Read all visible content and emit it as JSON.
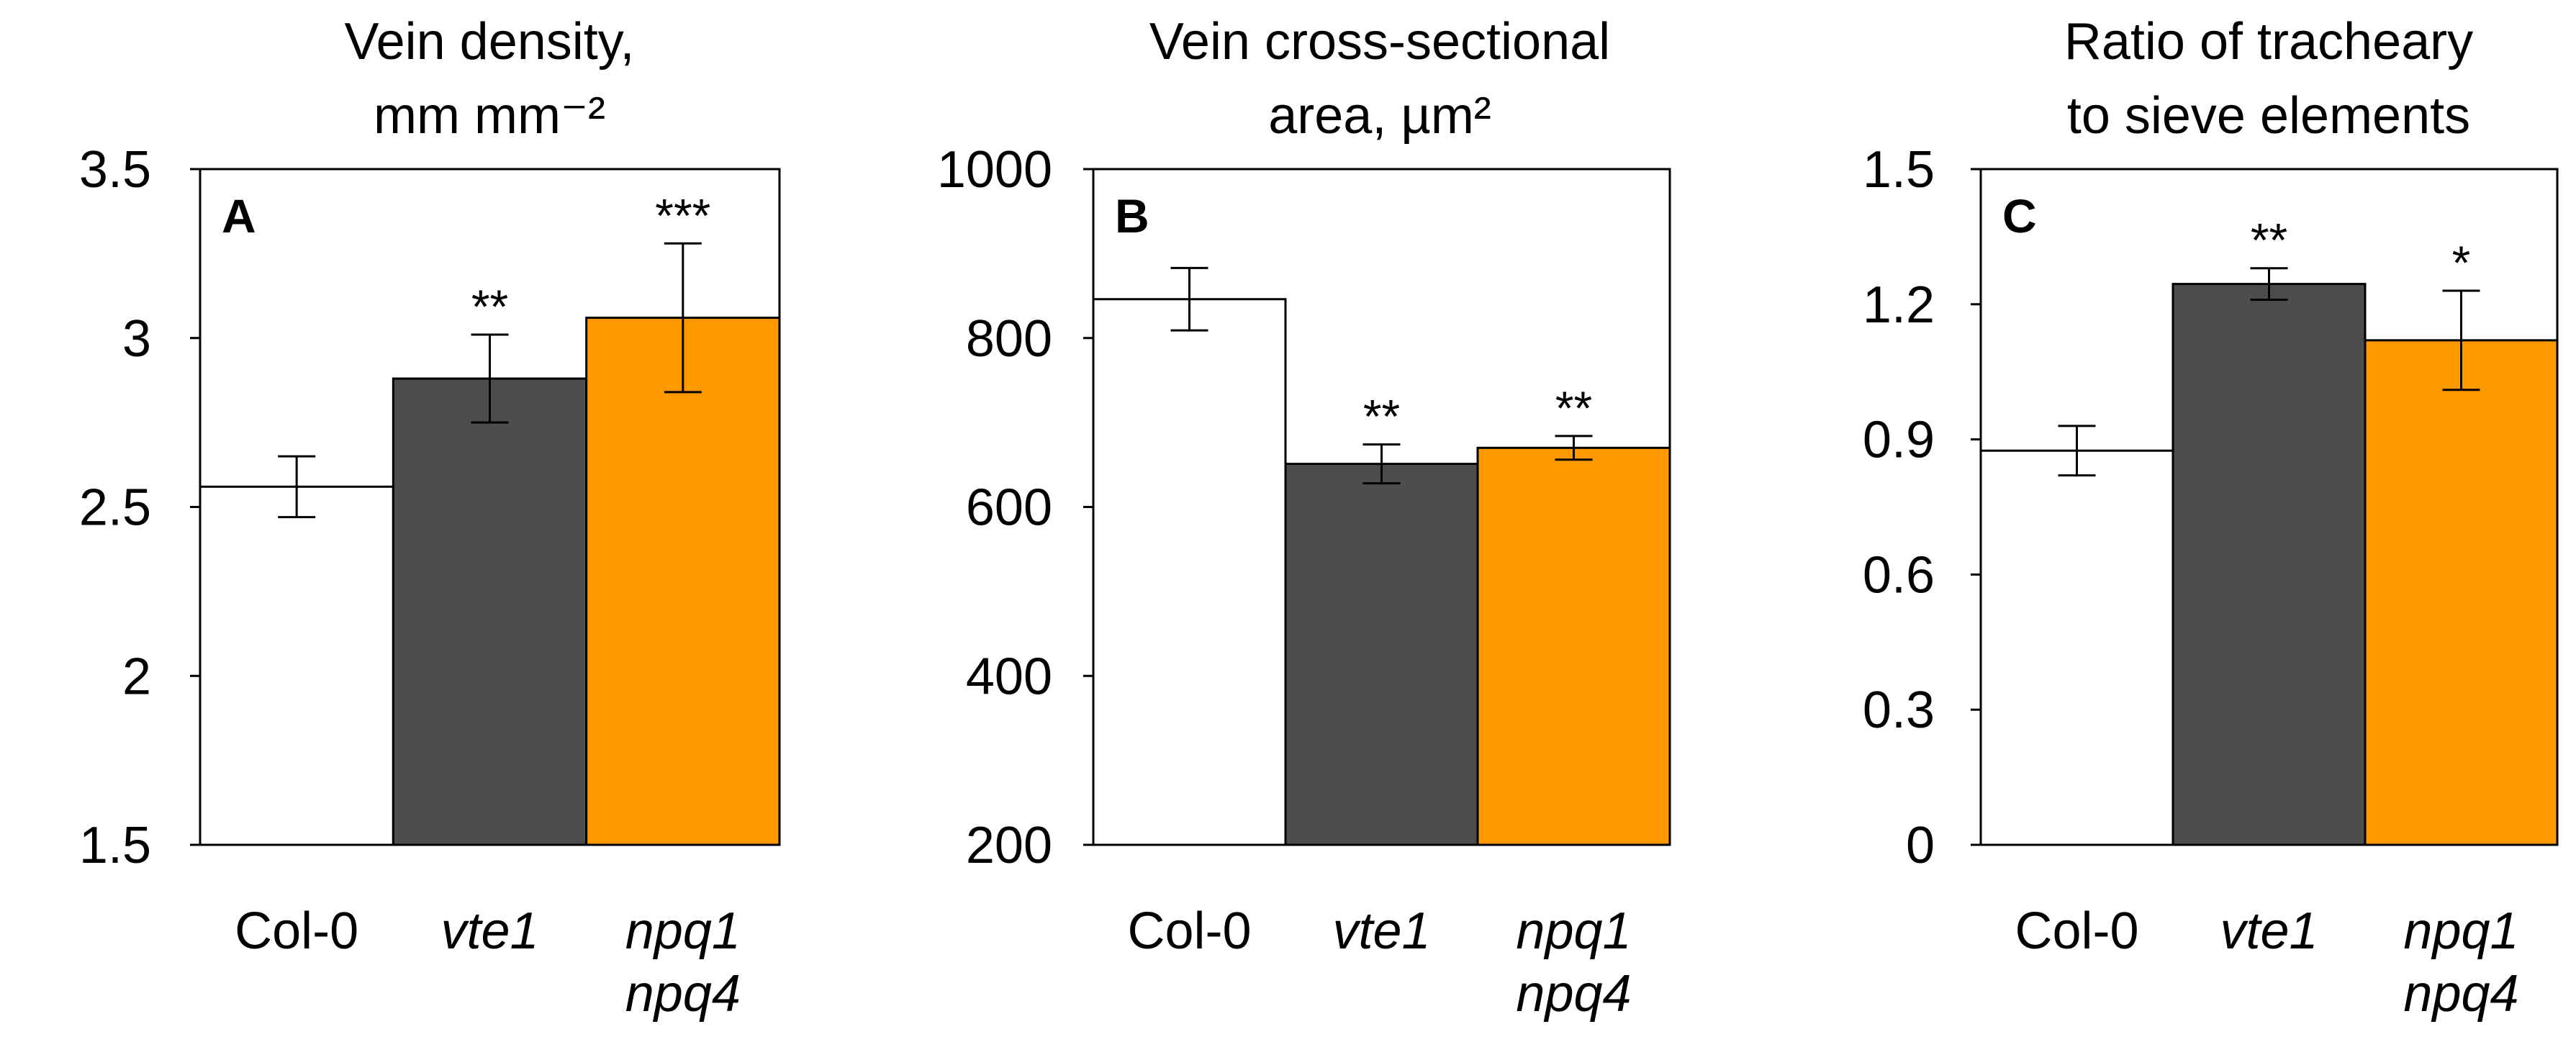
{
  "chart_data": [
    {
      "type": "bar",
      "panel": "A",
      "title": [
        "Vein density,",
        "mm mm⁻²"
      ],
      "categories": [
        {
          "lines": [
            "Col-0"
          ],
          "italic": false
        },
        {
          "lines": [
            "vte1"
          ],
          "italic": true
        },
        {
          "lines": [
            "npq1",
            "npq4"
          ],
          "italic": true
        }
      ],
      "values": [
        2.56,
        2.88,
        3.06
      ],
      "errors": [
        0.09,
        0.13,
        0.22
      ],
      "significance": [
        "",
        "**",
        "***"
      ],
      "colors": [
        "#ffffff",
        "#4d4d4d",
        "#ff9900"
      ],
      "ylim": [
        1.5,
        3.5
      ],
      "yticks": [
        "1.5",
        "2",
        "2.5",
        "3",
        "3.5"
      ],
      "ytick_values": [
        1.5,
        2,
        2.5,
        3,
        3.5
      ]
    },
    {
      "type": "bar",
      "panel": "B",
      "title": [
        "Vein cross-sectional",
        "area, µm²"
      ],
      "categories": [
        {
          "lines": [
            "Col-0"
          ],
          "italic": false
        },
        {
          "lines": [
            "vte1"
          ],
          "italic": true
        },
        {
          "lines": [
            "npq1",
            "npq4"
          ],
          "italic": true
        }
      ],
      "values": [
        846,
        651,
        670
      ],
      "errors": [
        37,
        23,
        14
      ],
      "significance": [
        "",
        "**",
        "**"
      ],
      "colors": [
        "#ffffff",
        "#4d4d4d",
        "#ff9900"
      ],
      "ylim": [
        200,
        1000
      ],
      "yticks": [
        "200",
        "400",
        "600",
        "800",
        "1000"
      ],
      "ytick_values": [
        200,
        400,
        600,
        800,
        1000
      ]
    },
    {
      "type": "bar",
      "panel": "C",
      "title": [
        "Ratio of tracheary",
        "to sieve elements"
      ],
      "categories": [
        {
          "lines": [
            "Col-0"
          ],
          "italic": false
        },
        {
          "lines": [
            "vte1"
          ],
          "italic": true
        },
        {
          "lines": [
            "npq1",
            "npq4"
          ],
          "italic": true
        }
      ],
      "values": [
        0.875,
        1.245,
        1.12
      ],
      "errors": [
        0.055,
        0.035,
        0.11
      ],
      "significance": [
        "",
        "**",
        "*"
      ],
      "colors": [
        "#ffffff",
        "#4d4d4d",
        "#ff9900"
      ],
      "ylim": [
        0,
        1.5
      ],
      "yticks": [
        "0",
        "0.3",
        "0.6",
        "0.9",
        "1.2",
        "1.5"
      ],
      "ytick_values": [
        0,
        0.3,
        0.6,
        0.9,
        1.2,
        1.5
      ]
    }
  ]
}
